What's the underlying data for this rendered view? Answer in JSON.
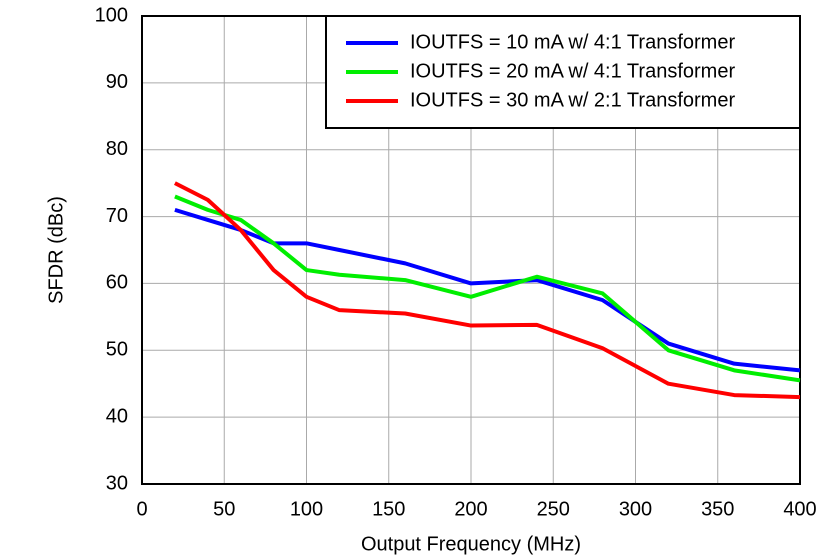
{
  "chart_data": {
    "type": "line",
    "x_label": "Output Frequency (MHz)",
    "y_label": "SFDR (dBc)",
    "x": [
      20,
      40,
      60,
      80,
      100,
      120,
      160,
      200,
      240,
      280,
      320,
      360,
      400
    ],
    "series": [
      {
        "name": "IOUTFS = 10 mA w/ 4:1 Transformer",
        "color": "#0000ff",
        "values": [
          71,
          69.5,
          68,
          66,
          66,
          65,
          63,
          60,
          60.5,
          57.5,
          51,
          48,
          47
        ]
      },
      {
        "name": "IOUTFS = 20 mA w/ 4:1 Transformer",
        "color": "#00ee00",
        "values": [
          73,
          71,
          69.5,
          66,
          62,
          61.3,
          60.5,
          58,
          61,
          58.5,
          50,
          47,
          45.5
        ]
      },
      {
        "name": "IOUTFS = 30 mA w/ 2:1 Transformer",
        "color": "#ff0000",
        "values": [
          75,
          72.5,
          68,
          62,
          58,
          56,
          55.5,
          53.7,
          53.8,
          50.3,
          45,
          43.3,
          43
        ]
      }
    ],
    "xlim": [
      0,
      400
    ],
    "xticks": [
      0,
      50,
      100,
      150,
      200,
      250,
      300,
      350,
      400
    ],
    "ylim": [
      30,
      100
    ],
    "yticks": [
      30,
      40,
      50,
      60,
      70,
      80,
      90,
      100
    ],
    "grid": true,
    "legend": "upper-right"
  }
}
